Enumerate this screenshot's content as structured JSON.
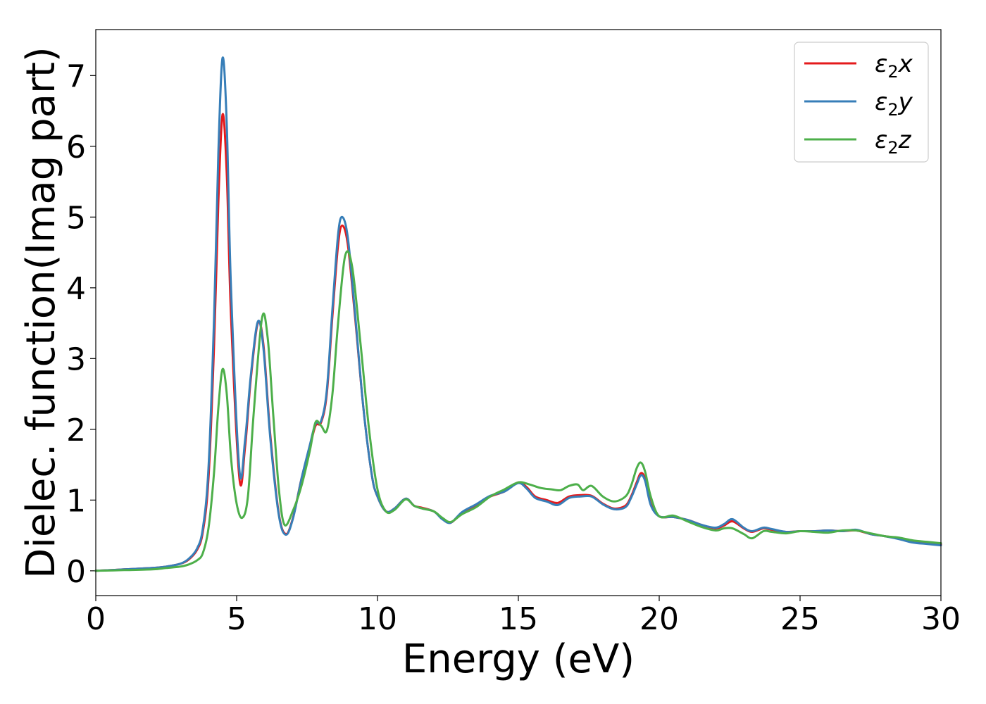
{
  "chart_data": {
    "type": "line",
    "title": "",
    "xlabel": "Energy (eV)",
    "ylabel": "Dielec. function(Imag part)",
    "xlim": [
      0,
      30
    ],
    "ylim": [
      -0.35,
      7.65
    ],
    "xticks": [
      0,
      5,
      10,
      15,
      20,
      25,
      30
    ],
    "yticks": [
      0,
      1,
      2,
      3,
      4,
      5,
      6,
      7
    ],
    "grid": false,
    "legend_position": "top-right",
    "series": [
      {
        "name": "ε2x",
        "legend_base": "ε",
        "legend_sub": "2",
        "legend_var": "x",
        "color": "#e41a1c",
        "x": [
          0,
          1,
          2,
          2.5,
          3,
          3.3,
          3.6,
          3.8,
          4.0,
          4.2,
          4.35,
          4.5,
          4.65,
          4.8,
          5.1,
          5.3,
          5.5,
          5.75,
          5.95,
          6.2,
          6.5,
          6.75,
          7.0,
          7.3,
          7.6,
          7.8,
          8.0,
          8.2,
          8.4,
          8.6,
          8.75,
          8.95,
          9.2,
          9.5,
          9.8,
          10.0,
          10.3,
          10.6,
          11.0,
          11.3,
          11.6,
          12.0,
          12.3,
          12.6,
          13.0,
          13.5,
          14.0,
          14.5,
          15.0,
          15.3,
          15.6,
          16.0,
          16.4,
          16.8,
          17.2,
          17.6,
          18.0,
          18.4,
          18.8,
          19.0,
          19.2,
          19.35,
          19.5,
          19.7,
          20.0,
          20.5,
          21.0,
          21.5,
          22.0,
          22.3,
          22.6,
          23.0,
          23.3,
          23.7,
          24.0,
          24.5,
          25.0,
          25.5,
          26.0,
          26.5,
          27.0,
          27.5,
          28.0,
          28.5,
          29.0,
          29.5,
          30.0
        ],
        "y": [
          0.0,
          0.02,
          0.04,
          0.06,
          0.1,
          0.16,
          0.3,
          0.55,
          1.3,
          3.2,
          5.2,
          6.45,
          5.6,
          3.6,
          1.3,
          1.75,
          2.7,
          3.5,
          3.2,
          1.9,
          0.8,
          0.52,
          0.75,
          1.3,
          1.75,
          2.05,
          2.1,
          2.5,
          3.6,
          4.6,
          4.88,
          4.6,
          3.6,
          2.3,
          1.35,
          1.05,
          0.84,
          0.88,
          1.02,
          0.92,
          0.89,
          0.84,
          0.74,
          0.68,
          0.82,
          0.93,
          1.05,
          1.12,
          1.25,
          1.18,
          1.05,
          1.0,
          0.96,
          1.05,
          1.07,
          1.06,
          0.95,
          0.88,
          0.92,
          1.05,
          1.25,
          1.38,
          1.3,
          0.95,
          0.77,
          0.76,
          0.72,
          0.65,
          0.6,
          0.64,
          0.7,
          0.6,
          0.55,
          0.6,
          0.58,
          0.55,
          0.56,
          0.56,
          0.57,
          0.56,
          0.57,
          0.52,
          0.49,
          0.46,
          0.41,
          0.39,
          0.37
        ]
      },
      {
        "name": "ε2y",
        "legend_base": "ε",
        "legend_sub": "2",
        "legend_var": "y",
        "color": "#377eb8",
        "x": [
          0,
          1,
          2,
          2.5,
          3,
          3.3,
          3.6,
          3.8,
          4.0,
          4.2,
          4.35,
          4.5,
          4.65,
          4.8,
          5.1,
          5.3,
          5.5,
          5.75,
          5.95,
          6.2,
          6.5,
          6.75,
          7.0,
          7.3,
          7.6,
          7.8,
          8.0,
          8.2,
          8.4,
          8.6,
          8.75,
          8.95,
          9.2,
          9.5,
          9.8,
          10.0,
          10.3,
          10.6,
          11.0,
          11.3,
          11.6,
          12.0,
          12.3,
          12.6,
          13.0,
          13.5,
          14.0,
          14.5,
          15.0,
          15.3,
          15.6,
          16.0,
          16.4,
          16.8,
          17.2,
          17.6,
          18.0,
          18.4,
          18.8,
          19.0,
          19.2,
          19.35,
          19.5,
          19.7,
          20.0,
          20.5,
          21.0,
          21.5,
          22.0,
          22.3,
          22.6,
          23.0,
          23.3,
          23.7,
          24.0,
          24.5,
          25.0,
          25.5,
          26.0,
          26.5,
          27.0,
          27.5,
          28.0,
          28.5,
          29.0,
          29.5,
          30.0
        ],
        "y": [
          0.0,
          0.02,
          0.04,
          0.06,
          0.1,
          0.17,
          0.32,
          0.6,
          1.45,
          3.6,
          5.9,
          7.25,
          6.3,
          4.0,
          1.42,
          1.85,
          2.75,
          3.52,
          3.15,
          1.85,
          0.78,
          0.51,
          0.74,
          1.3,
          1.78,
          2.08,
          2.12,
          2.55,
          3.7,
          4.75,
          5.0,
          4.7,
          3.65,
          2.3,
          1.35,
          1.05,
          0.84,
          0.88,
          1.02,
          0.92,
          0.88,
          0.84,
          0.73,
          0.68,
          0.83,
          0.94,
          1.06,
          1.12,
          1.24,
          1.16,
          1.03,
          0.98,
          0.93,
          1.03,
          1.05,
          1.05,
          0.94,
          0.87,
          0.9,
          1.03,
          1.22,
          1.35,
          1.27,
          0.93,
          0.77,
          0.76,
          0.72,
          0.65,
          0.61,
          0.66,
          0.73,
          0.61,
          0.56,
          0.61,
          0.59,
          0.55,
          0.56,
          0.56,
          0.57,
          0.56,
          0.58,
          0.52,
          0.49,
          0.45,
          0.4,
          0.38,
          0.36
        ]
      },
      {
        "name": "ε2z",
        "legend_base": "ε",
        "legend_sub": "2",
        "legend_var": "z",
        "color": "#4daf4a",
        "x": [
          0,
          1,
          2,
          2.5,
          3,
          3.3,
          3.6,
          3.8,
          4.0,
          4.2,
          4.35,
          4.5,
          4.65,
          4.8,
          5.0,
          5.2,
          5.4,
          5.6,
          5.9,
          6.1,
          6.3,
          6.5,
          6.7,
          7.0,
          7.3,
          7.6,
          7.8,
          8.0,
          8.2,
          8.4,
          8.6,
          8.85,
          9.1,
          9.4,
          9.7,
          10.0,
          10.3,
          10.6,
          11.0,
          11.3,
          11.6,
          12.0,
          12.3,
          12.6,
          13.0,
          13.5,
          14.0,
          14.5,
          15.0,
          15.4,
          15.8,
          16.2,
          16.5,
          16.8,
          17.1,
          17.3,
          17.6,
          18.0,
          18.4,
          18.8,
          19.0,
          19.2,
          19.35,
          19.5,
          19.7,
          20.0,
          20.5,
          21.0,
          21.5,
          22.0,
          22.3,
          22.6,
          23.0,
          23.3,
          23.7,
          24.0,
          24.5,
          25.0,
          25.5,
          26.0,
          26.5,
          27.0,
          27.5,
          28.0,
          28.5,
          29.0,
          29.5,
          30.0
        ],
        "y": [
          0.0,
          0.01,
          0.02,
          0.04,
          0.06,
          0.09,
          0.15,
          0.25,
          0.6,
          1.4,
          2.3,
          2.85,
          2.5,
          1.6,
          0.95,
          0.75,
          1.05,
          2.2,
          3.57,
          3.3,
          2.2,
          1.15,
          0.65,
          0.85,
          1.2,
          1.7,
          2.1,
          2.05,
          1.98,
          2.5,
          3.5,
          4.45,
          4.3,
          3.2,
          2.0,
          1.15,
          0.84,
          0.86,
          1.01,
          0.92,
          0.88,
          0.84,
          0.75,
          0.69,
          0.8,
          0.9,
          1.05,
          1.15,
          1.25,
          1.22,
          1.17,
          1.15,
          1.14,
          1.2,
          1.22,
          1.14,
          1.2,
          1.05,
          0.98,
          1.05,
          1.2,
          1.45,
          1.53,
          1.4,
          1.05,
          0.77,
          0.78,
          0.7,
          0.62,
          0.57,
          0.6,
          0.6,
          0.52,
          0.46,
          0.56,
          0.55,
          0.53,
          0.56,
          0.55,
          0.54,
          0.57,
          0.57,
          0.53,
          0.49,
          0.47,
          0.43,
          0.41,
          0.39
        ]
      }
    ]
  }
}
